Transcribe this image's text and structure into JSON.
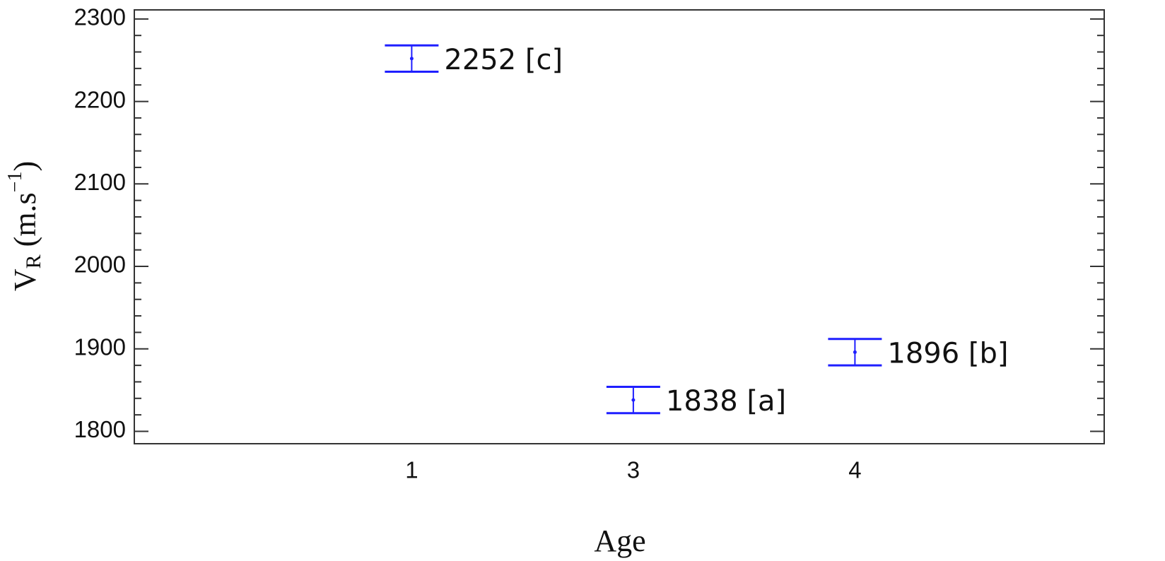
{
  "chart_data": {
    "type": "errorbar",
    "xlabel": "Age",
    "ylabel": [
      "V",
      "R",
      " (m.s",
      "−1",
      ")"
    ],
    "categories": [
      "1",
      "3",
      "4"
    ],
    "series": [
      {
        "color": "#1f1fff",
        "values": [
          2252,
          1838,
          1896
        ],
        "errors": [
          16,
          16,
          16
        ],
        "value_labels": [
          "2252 [c]",
          "1838 [a]",
          "1896 [b]"
        ]
      }
    ],
    "ylim": [
      1785,
      2311
    ],
    "yticks": [
      1800,
      1900,
      2000,
      2100,
      2200,
      2300
    ]
  }
}
